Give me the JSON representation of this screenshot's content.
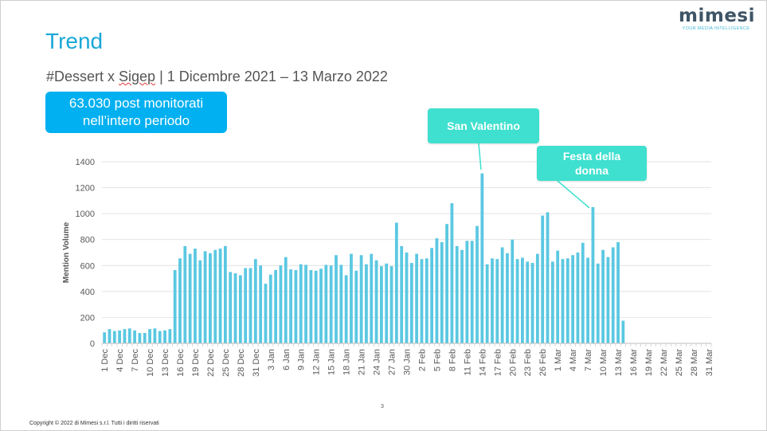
{
  "header": {
    "title": "Trend",
    "subtitle_hashtag": "#Dessert x ",
    "subtitle_brand": "Sigep",
    "subtitle_period": " | 1 Dicembre 2021 – 13 Marzo 2022"
  },
  "logo": {
    "word": "mimesi",
    "tagline": "YOUR MEDIA INTELLIGENCE"
  },
  "stat_box": {
    "line1": "63.030 post monitorati",
    "line2": "nell’intero periodo"
  },
  "annotations": {
    "valentine": "San Valentino",
    "women_day_line1": "Festa della",
    "women_day_line2": "donna"
  },
  "footer": {
    "page_number": "3",
    "copyright": "Copyright © 2022 di Mimesi s.r.l. Tutti i diritti riservati"
  },
  "colors": {
    "bar": "#5bc8e2",
    "title": "#1aa7d8",
    "stat_box": "#00b0f0",
    "callout": "#3fe0cf",
    "grid": "#d9d9d9"
  },
  "chart_data": {
    "type": "bar",
    "ylabel": "Mention Volume",
    "ylim": [
      0,
      1400
    ],
    "yticks": [
      0,
      200,
      400,
      600,
      800,
      1000,
      1200,
      1400
    ],
    "grid": true,
    "xtick_labels": [
      "1 Dec",
      "4 Dec",
      "7 Dec",
      "10 Dec",
      "13 Dec",
      "16 Dec",
      "19 Dec",
      "22 Dec",
      "25 Dec",
      "28 Dec",
      "31 Dec",
      "3 Jan",
      "6 Jan",
      "9 Jan",
      "12 Jan",
      "15 Jan",
      "18 Jan",
      "21 Jan",
      "24 Jan",
      "27 Jan",
      "30 Jan",
      "2 Feb",
      "5 Feb",
      "8 Feb",
      "11 Feb",
      "14 Feb",
      "17 Feb",
      "20 Feb",
      "23 Feb",
      "26 Feb",
      "1 Mar",
      "4 Mar",
      "7 Mar",
      "10 Mar",
      "13 Mar",
      "16 Mar",
      "19 Mar",
      "22 Mar",
      "25 Mar",
      "28 Mar",
      "31 Mar"
    ],
    "x_start": "1 Dec",
    "x_end": "31 Mar",
    "values": [
      85,
      110,
      95,
      100,
      110,
      115,
      100,
      80,
      80,
      110,
      115,
      95,
      100,
      110,
      565,
      655,
      750,
      690,
      730,
      640,
      710,
      695,
      720,
      730,
      750,
      550,
      540,
      525,
      580,
      580,
      650,
      600,
      460,
      530,
      565,
      600,
      665,
      570,
      565,
      610,
      605,
      565,
      560,
      575,
      605,
      600,
      680,
      605,
      525,
      690,
      560,
      680,
      610,
      690,
      640,
      595,
      615,
      595,
      930,
      750,
      700,
      620,
      690,
      650,
      655,
      735,
      810,
      780,
      920,
      1080,
      750,
      720,
      790,
      790,
      905,
      1310,
      610,
      655,
      650,
      740,
      695,
      800,
      650,
      660,
      630,
      620,
      690,
      985,
      1010,
      630,
      715,
      650,
      655,
      680,
      700,
      775,
      660,
      1050,
      615,
      720,
      665,
      740,
      780,
      175
    ]
  }
}
